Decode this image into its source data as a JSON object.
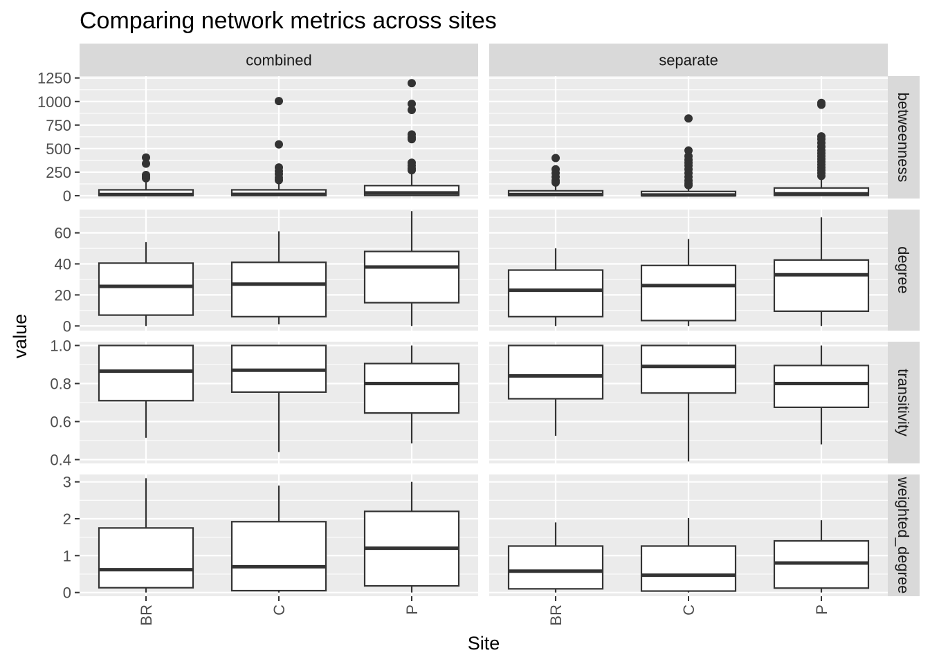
{
  "chart_data": {
    "type": "boxplot",
    "title": "Comparing network metrics across sites",
    "xlabel": "Site",
    "ylabel": "value",
    "categories": [
      "BR",
      "C",
      "P"
    ],
    "columns": [
      "combined",
      "separate"
    ],
    "rows": [
      {
        "name": "betweenness",
        "ylim": [
          -30,
          1270
        ],
        "ticks": [
          0,
          250,
          500,
          750,
          1000,
          1250
        ],
        "tick_labels": [
          "0",
          "250",
          "500",
          "750",
          "1000",
          "1250"
        ]
      },
      {
        "name": "degree",
        "ylim": [
          -3,
          75
        ],
        "ticks": [
          0,
          20,
          40,
          60
        ],
        "tick_labels": [
          "0",
          "20",
          "40",
          "60"
        ]
      },
      {
        "name": "transitivity",
        "ylim": [
          0.38,
          1.02
        ],
        "ticks": [
          0.4,
          0.6,
          0.8,
          1.0
        ],
        "tick_labels": [
          "0.4",
          "0.6",
          "0.8",
          "1.0"
        ]
      },
      {
        "name": "weighted_degree",
        "ylim": [
          -0.1,
          3.2
        ],
        "ticks": [
          0,
          1,
          2,
          3
        ],
        "tick_labels": [
          "0",
          "1",
          "2",
          "3"
        ]
      }
    ],
    "panels": [
      {
        "row": "betweenness",
        "column": "combined",
        "boxes": [
          {
            "site": "BR",
            "low": 0,
            "q1": 2,
            "median": 12,
            "q3": 62,
            "high": 150,
            "outliers": [
              185,
              200,
              220,
              340,
              405
            ]
          },
          {
            "site": "C",
            "low": 0,
            "q1": 2,
            "median": 14,
            "q3": 62,
            "high": 150,
            "outliers": [
              165,
              190,
              230,
              260,
              300,
              545,
              1005
            ]
          },
          {
            "site": "P",
            "low": 0,
            "q1": 3,
            "median": 30,
            "q3": 107,
            "high": 250,
            "outliers": [
              270,
              290,
              320,
              350,
              600,
              620,
              650,
              910,
              975,
              1195
            ]
          }
        ]
      },
      {
        "row": "betweenness",
        "column": "separate",
        "boxes": [
          {
            "site": "BR",
            "low": 0,
            "q1": 2,
            "median": 12,
            "q3": 52,
            "high": 120,
            "outliers": [
              140,
              160,
              200,
              240,
              280,
              400
            ]
          },
          {
            "site": "C",
            "low": 0,
            "q1": 0,
            "median": 8,
            "q3": 45,
            "high": 100,
            "outliers": [
              110,
              130,
              160,
              200,
              240,
              280,
              320,
              350,
              380,
              420,
              480,
              820
            ]
          },
          {
            "site": "P",
            "low": 0,
            "q1": 3,
            "median": 20,
            "q3": 82,
            "high": 190,
            "outliers": [
              210,
              240,
              270,
              300,
              330,
              360,
              390,
              420,
              450,
              480,
              520,
              560,
              600,
              630,
              965,
              985
            ]
          }
        ]
      },
      {
        "row": "degree",
        "column": "combined",
        "boxes": [
          {
            "site": "BR",
            "low": 0,
            "q1": 7,
            "median": 25.5,
            "q3": 40.5,
            "high": 54,
            "outliers": []
          },
          {
            "site": "C",
            "low": 1,
            "q1": 6,
            "median": 27,
            "q3": 41,
            "high": 61,
            "outliers": []
          },
          {
            "site": "P",
            "low": 0,
            "q1": 15,
            "median": 38,
            "q3": 48,
            "high": 74,
            "outliers": []
          }
        ]
      },
      {
        "row": "degree",
        "column": "separate",
        "boxes": [
          {
            "site": "BR",
            "low": 0,
            "q1": 6,
            "median": 23,
            "q3": 36,
            "high": 50,
            "outliers": []
          },
          {
            "site": "C",
            "low": 0,
            "q1": 3.5,
            "median": 26,
            "q3": 39,
            "high": 56,
            "outliers": []
          },
          {
            "site": "P",
            "low": 0,
            "q1": 9.5,
            "median": 33,
            "q3": 42.5,
            "high": 70,
            "outliers": []
          }
        ]
      },
      {
        "row": "transitivity",
        "column": "combined",
        "boxes": [
          {
            "site": "BR",
            "low": 0.515,
            "q1": 0.71,
            "median": 0.865,
            "q3": 1.0,
            "high": 1.0,
            "outliers": []
          },
          {
            "site": "C",
            "low": 0.44,
            "q1": 0.755,
            "median": 0.87,
            "q3": 1.0,
            "high": 1.0,
            "outliers": []
          },
          {
            "site": "P",
            "low": 0.485,
            "q1": 0.645,
            "median": 0.8,
            "q3": 0.905,
            "high": 1.0,
            "outliers": []
          }
        ]
      },
      {
        "row": "transitivity",
        "column": "separate",
        "boxes": [
          {
            "site": "BR",
            "low": 0.525,
            "q1": 0.72,
            "median": 0.84,
            "q3": 1.0,
            "high": 1.0,
            "outliers": []
          },
          {
            "site": "C",
            "low": 0.39,
            "q1": 0.75,
            "median": 0.89,
            "q3": 1.0,
            "high": 1.0,
            "outliers": []
          },
          {
            "site": "P",
            "low": 0.48,
            "q1": 0.675,
            "median": 0.8,
            "q3": 0.895,
            "high": 1.0,
            "outliers": []
          }
        ]
      },
      {
        "row": "weighted_degree",
        "column": "combined",
        "boxes": [
          {
            "site": "BR",
            "low": 0,
            "q1": 0.13,
            "median": 0.62,
            "q3": 1.75,
            "high": 3.1,
            "outliers": []
          },
          {
            "site": "C",
            "low": 0,
            "q1": 0.05,
            "median": 0.7,
            "q3": 1.92,
            "high": 2.9,
            "outliers": []
          },
          {
            "site": "P",
            "low": 0,
            "q1": 0.18,
            "median": 1.2,
            "q3": 2.2,
            "high": 3.0,
            "outliers": []
          }
        ]
      },
      {
        "row": "weighted_degree",
        "column": "separate",
        "boxes": [
          {
            "site": "BR",
            "low": 0,
            "q1": 0.1,
            "median": 0.58,
            "q3": 1.26,
            "high": 1.9,
            "outliers": []
          },
          {
            "site": "C",
            "low": 0,
            "q1": 0.04,
            "median": 0.47,
            "q3": 1.26,
            "high": 2.02,
            "outliers": []
          },
          {
            "site": "P",
            "low": 0,
            "q1": 0.12,
            "median": 0.8,
            "q3": 1.4,
            "high": 1.96,
            "outliers": []
          }
        ]
      }
    ],
    "grid": true,
    "legend": "none"
  }
}
